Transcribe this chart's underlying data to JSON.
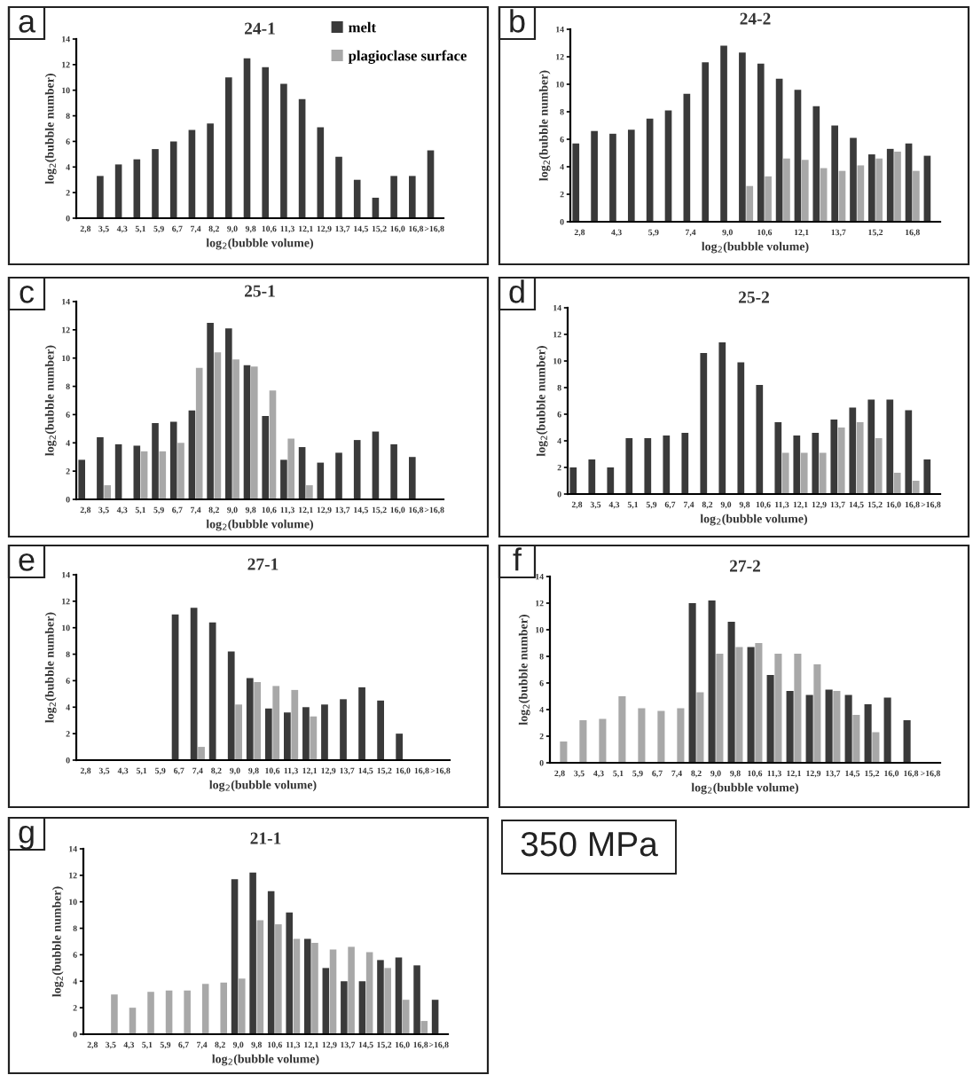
{
  "chart_data": [
    {
      "type": "bar",
      "title": "24-1",
      "annotations": [
        "a"
      ],
      "xlabel": "log$_{2}$(bubble volume)",
      "ylabel": "log$_{2}$(bubble number)",
      "legend": "top right",
      "categories": [
        "2,8",
        "3,5",
        "4,3",
        "5,1",
        "5,9",
        "6,7",
        "7,4",
        "8,2",
        "9,0",
        "9,8",
        "10,6",
        "11,3",
        "12,1",
        "12,9",
        "13,7",
        "14,5",
        "15,2",
        "16,0",
        "16,8",
        ">16,8"
      ],
      "ylim": [
        0,
        14
      ],
      "yticks": [
        0,
        2,
        4,
        6,
        8,
        10,
        12,
        14
      ],
      "series": [
        {
          "name": "melt",
          "color": "#3a3a3a",
          "values": [
            null,
            3.3,
            4.2,
            4.6,
            5.4,
            6.0,
            6.9,
            7.4,
            11.0,
            12.5,
            11.8,
            10.5,
            9.3,
            7.1,
            4.8,
            3.0,
            1.6,
            3.3,
            3.3,
            5.3
          ]
        },
        {
          "name": "plagioclase surface",
          "color": "#a8a8a8",
          "values": [
            null,
            null,
            null,
            null,
            null,
            null,
            null,
            null,
            null,
            null,
            null,
            null,
            null,
            null,
            null,
            null,
            null,
            null,
            null,
            null
          ]
        }
      ]
    },
    {
      "type": "bar",
      "title": "24-2",
      "annotations": [
        "b"
      ],
      "xlabel": "log$_{2}$(bubble volume)",
      "ylabel": "log$_{2}$(bubble number)",
      "categories": [
        "2,8",
        null,
        "4,3",
        null,
        "5,9",
        null,
        "7,4",
        null,
        "9,0",
        null,
        "10,6",
        null,
        "12,1",
        null,
        "13,7",
        null,
        "15,2",
        null,
        "16,8",
        null
      ],
      "ylim": [
        0,
        14
      ],
      "yticks": [
        0,
        2,
        4,
        6,
        8,
        10,
        12,
        14
      ],
      "series": [
        {
          "color": "#3a3a3a",
          "values": [
            5.7,
            6.6,
            6.4,
            6.7,
            7.5,
            8.1,
            9.3,
            11.6,
            12.8,
            12.3,
            11.5,
            10.4,
            9.6,
            8.4,
            7.0,
            6.1,
            4.9,
            5.3,
            5.7,
            4.8
          ]
        },
        {
          "color": "#a8a8a8",
          "values": [
            null,
            null,
            null,
            null,
            null,
            null,
            null,
            null,
            null,
            2.6,
            3.3,
            4.6,
            4.5,
            3.9,
            3.7,
            4.1,
            4.6,
            5.1,
            3.7,
            null
          ]
        }
      ]
    },
    {
      "type": "bar",
      "title": "25-1",
      "annotations": [
        "c"
      ],
      "xlabel": "log$_{2}$(bubble volume)",
      "ylabel": "log$_{2}$(bubble number)",
      "categories": [
        "2,8",
        "3,5",
        "4,3",
        "5,1",
        "5,9",
        "6,7",
        "7,4",
        "8,2",
        "9,0",
        "9,8",
        "10,6",
        "11,3",
        "12,1",
        "12,9",
        "13,7",
        "14,5",
        "15,2",
        "16,0",
        "16,8",
        ">16,8"
      ],
      "ylim": [
        0,
        14
      ],
      "yticks": [
        0,
        2,
        4,
        6,
        8,
        10,
        12,
        14
      ],
      "series": [
        {
          "color": "#3a3a3a",
          "values": [
            2.8,
            4.4,
            3.9,
            3.8,
            5.4,
            5.5,
            6.3,
            12.5,
            12.1,
            9.5,
            5.9,
            2.8,
            3.7,
            2.6,
            3.3,
            4.2,
            4.8,
            3.9,
            3.0,
            null
          ]
        },
        {
          "color": "#a8a8a8",
          "values": [
            null,
            1.0,
            null,
            3.4,
            3.4,
            4.0,
            9.3,
            10.4,
            9.9,
            9.4,
            7.7,
            4.3,
            1.0,
            null,
            null,
            null,
            null,
            null,
            null,
            null
          ]
        }
      ]
    },
    {
      "type": "bar",
      "title": "25-2",
      "annotations": [
        "d"
      ],
      "xlabel": "log$_{2}$(bubble volume)",
      "ylabel": "log$_{2}$(bubble number)",
      "categories": [
        "2,8",
        "3,5",
        "4,3",
        "5,1",
        "5,9",
        "6,7",
        "7,4",
        "8,2",
        "9,0",
        "9,8",
        "10,6",
        "11,3",
        "12,1",
        "12,9",
        "13,7",
        "14,5",
        "15,2",
        "16,0",
        "16,8",
        ">16,8"
      ],
      "ylim": [
        0,
        14
      ],
      "yticks": [
        0,
        2,
        4,
        6,
        8,
        10,
        12,
        14
      ],
      "series": [
        {
          "color": "#3a3a3a",
          "values": [
            2.0,
            2.6,
            2.0,
            4.2,
            4.2,
            4.4,
            4.6,
            10.6,
            11.4,
            9.9,
            8.2,
            5.4,
            4.4,
            4.6,
            5.6,
            6.5,
            7.1,
            7.1,
            6.3,
            2.6
          ]
        },
        {
          "color": "#a8a8a8",
          "values": [
            null,
            null,
            null,
            null,
            null,
            null,
            null,
            null,
            null,
            null,
            null,
            3.1,
            3.1,
            3.1,
            5.0,
            5.4,
            4.2,
            1.6,
            1.0,
            null
          ]
        }
      ]
    },
    {
      "type": "bar",
      "title": "27-1",
      "annotations": [
        "e"
      ],
      "xlabel": "log$_{2}$(bubble volume)",
      "ylabel": "log$_{2}$(bubble number)",
      "categories": [
        "2,8",
        "3,5",
        "4,3",
        "5,1",
        "5,9",
        "6,7",
        "7,4",
        "8,2",
        "9,0",
        "9,8",
        "10,6",
        "11,3",
        "12,1",
        "12,9",
        "13,7",
        "14,5",
        "15,2",
        "16,0",
        "16,8",
        ">16,8"
      ],
      "ylim": [
        0,
        14
      ],
      "yticks": [
        0,
        2,
        4,
        6,
        8,
        10,
        12,
        14
      ],
      "series": [
        {
          "color": "#3a3a3a",
          "values": [
            null,
            null,
            null,
            null,
            null,
            11.0,
            11.5,
            10.4,
            8.2,
            6.2,
            3.9,
            3.6,
            4.0,
            4.2,
            4.6,
            5.5,
            4.5,
            2.0,
            null,
            null
          ]
        },
        {
          "color": "#a8a8a8",
          "values": [
            null,
            null,
            null,
            null,
            null,
            null,
            1.0,
            null,
            4.2,
            5.9,
            5.6,
            5.3,
            3.3,
            null,
            null,
            null,
            null,
            null,
            null,
            null
          ]
        }
      ]
    },
    {
      "type": "bar",
      "title": "27-2",
      "annotations": [
        "f"
      ],
      "xlabel": "log$_{2}$(bubble volume)",
      "ylabel": "log$_{2}$(bubble number)",
      "categories": [
        "2,8",
        "3,5",
        "4,3",
        "5,1",
        "5,9",
        "6,7",
        "7,4",
        "8,2",
        "9,0",
        "9,8",
        "10,6",
        "11,3",
        "12,1",
        "12,9",
        "13,7",
        "14,5",
        "15,2",
        "16,0",
        "16,8",
        ">16,8"
      ],
      "ylim": [
        0,
        14
      ],
      "yticks": [
        0,
        2,
        4,
        6,
        8,
        10,
        12,
        14
      ],
      "series": [
        {
          "color": "#3a3a3a",
          "values": [
            null,
            null,
            null,
            null,
            null,
            null,
            null,
            12.0,
            12.2,
            10.6,
            8.7,
            6.6,
            5.4,
            5.1,
            5.5,
            5.1,
            4.4,
            4.9,
            3.2,
            null
          ]
        },
        {
          "color": "#a8a8a8",
          "values": [
            1.6,
            3.2,
            3.3,
            5.0,
            4.1,
            3.9,
            4.1,
            5.3,
            8.2,
            8.7,
            9.0,
            8.2,
            8.2,
            7.4,
            5.4,
            3.6,
            2.3,
            null,
            null,
            null
          ]
        }
      ]
    },
    {
      "type": "bar",
      "title": "21-1",
      "annotations": [
        "g"
      ],
      "xlabel": "log$_{2}$(bubble volume)",
      "ylabel": "log$_{2}$(bubble number)",
      "categories": [
        "2,8",
        "3,5",
        "4,3",
        "5,1",
        "5,9",
        "6,7",
        "7,4",
        "8,2",
        "9,0",
        "9,8",
        "10,6",
        "11,3",
        "12,1",
        "12,9",
        "13,7",
        "14,5",
        "15,2",
        "16,0",
        "16,8",
        ">16,8"
      ],
      "ylim": [
        0,
        14
      ],
      "yticks": [
        0,
        2,
        4,
        6,
        8,
        10,
        12,
        14
      ],
      "series": [
        {
          "color": "#3a3a3a",
          "values": [
            null,
            null,
            null,
            null,
            null,
            null,
            null,
            null,
            11.7,
            12.2,
            10.8,
            9.2,
            7.2,
            5.0,
            4.0,
            4.0,
            5.6,
            5.8,
            5.2,
            2.6
          ]
        },
        {
          "color": "#a8a8a8",
          "values": [
            null,
            3.0,
            2.0,
            3.2,
            3.3,
            3.3,
            3.8,
            3.9,
            4.2,
            8.6,
            8.3,
            7.2,
            6.9,
            6.4,
            6.6,
            6.2,
            5.0,
            2.6,
            1.0,
            null
          ]
        }
      ]
    },
    {
      "type": "other",
      "annotations": [
        "350 MPa"
      ]
    }
  ]
}
